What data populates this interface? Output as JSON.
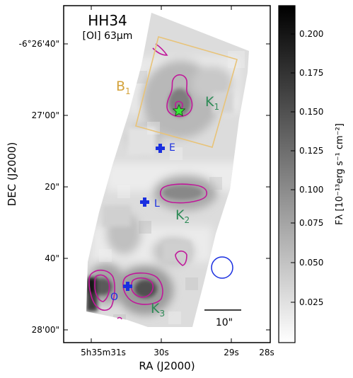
{
  "title": "HH34",
  "subtitle": "[OI] 63μm",
  "colors": {
    "contour": "#c0189a",
    "marker": "#1a2fe0",
    "star_fill": "#39e639",
    "knot_label": "#2e8b57",
    "box": "#e8c378",
    "box_label": "#d4a23a"
  },
  "x_axis": {
    "label": "RA (J2000)",
    "ticks": [
      "5h35m31s",
      "30s",
      "29s",
      "28s"
    ]
  },
  "y_axis": {
    "label": "DEC (J2000)",
    "ticks": [
      "-6°26'40\"",
      "27'00\"",
      "20\"",
      "40\"",
      "28'00\""
    ]
  },
  "colorbar": {
    "label": "Fλ [10⁻¹³erg s⁻¹ cm⁻²]",
    "ticks": [
      "0.025",
      "0.050",
      "0.075",
      "0.100",
      "0.125",
      "0.150",
      "0.175",
      "0.200"
    ],
    "colormap": "gray_r"
  },
  "annotations": {
    "box_main": "B",
    "box_sub": "1",
    "k1_main": "K",
    "k1_sub": "1",
    "k2_main": "K",
    "k2_sub": "2",
    "k3_main": "K",
    "k3_sub": "3",
    "marker_e": "E",
    "marker_l": "L",
    "marker_o": "O",
    "scalebar": "10\""
  }
}
